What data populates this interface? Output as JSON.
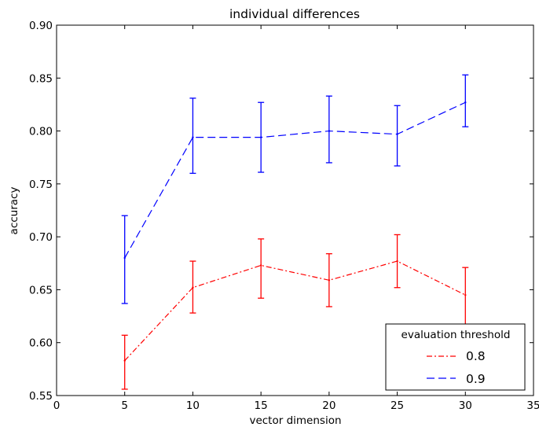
{
  "chart_data": {
    "type": "line",
    "title": "individual differences",
    "xlabel": "vector dimension",
    "ylabel": "accuracy",
    "xlim": [
      0,
      35
    ],
    "ylim": [
      0.55,
      0.9
    ],
    "xticks": [
      0,
      5,
      10,
      15,
      20,
      25,
      30,
      35
    ],
    "yticks": [
      0.55,
      0.6,
      0.65,
      0.7,
      0.75,
      0.8,
      0.85,
      0.9
    ],
    "x_tick_labels": [
      "0",
      "5",
      "10",
      "15",
      "20",
      "25",
      "30",
      "35"
    ],
    "y_tick_labels": [
      "0.55",
      "0.60",
      "0.65",
      "0.70",
      "0.75",
      "0.80",
      "0.85",
      "0.90"
    ],
    "x": [
      5,
      10,
      15,
      20,
      25,
      30
    ],
    "grid": false,
    "legend": {
      "title": "evaluation threshold",
      "placement": "lower-right"
    },
    "series": [
      {
        "name": "0.8",
        "color": "#ff0000",
        "linestyle": "dashdot",
        "values": [
          0.583,
          0.652,
          0.673,
          0.659,
          0.677,
          0.645
        ],
        "err_low": [
          0.556,
          0.628,
          0.642,
          0.634,
          0.652,
          0.617
        ],
        "err_high": [
          0.607,
          0.677,
          0.698,
          0.684,
          0.702,
          0.671
        ]
      },
      {
        "name": "0.9",
        "color": "#0000ff",
        "linestyle": "dashed",
        "values": [
          0.68,
          0.794,
          0.794,
          0.8,
          0.797,
          0.827
        ],
        "err_low": [
          0.637,
          0.76,
          0.761,
          0.77,
          0.767,
          0.804
        ],
        "err_high": [
          0.72,
          0.831,
          0.827,
          0.833,
          0.824,
          0.853
        ]
      }
    ]
  }
}
